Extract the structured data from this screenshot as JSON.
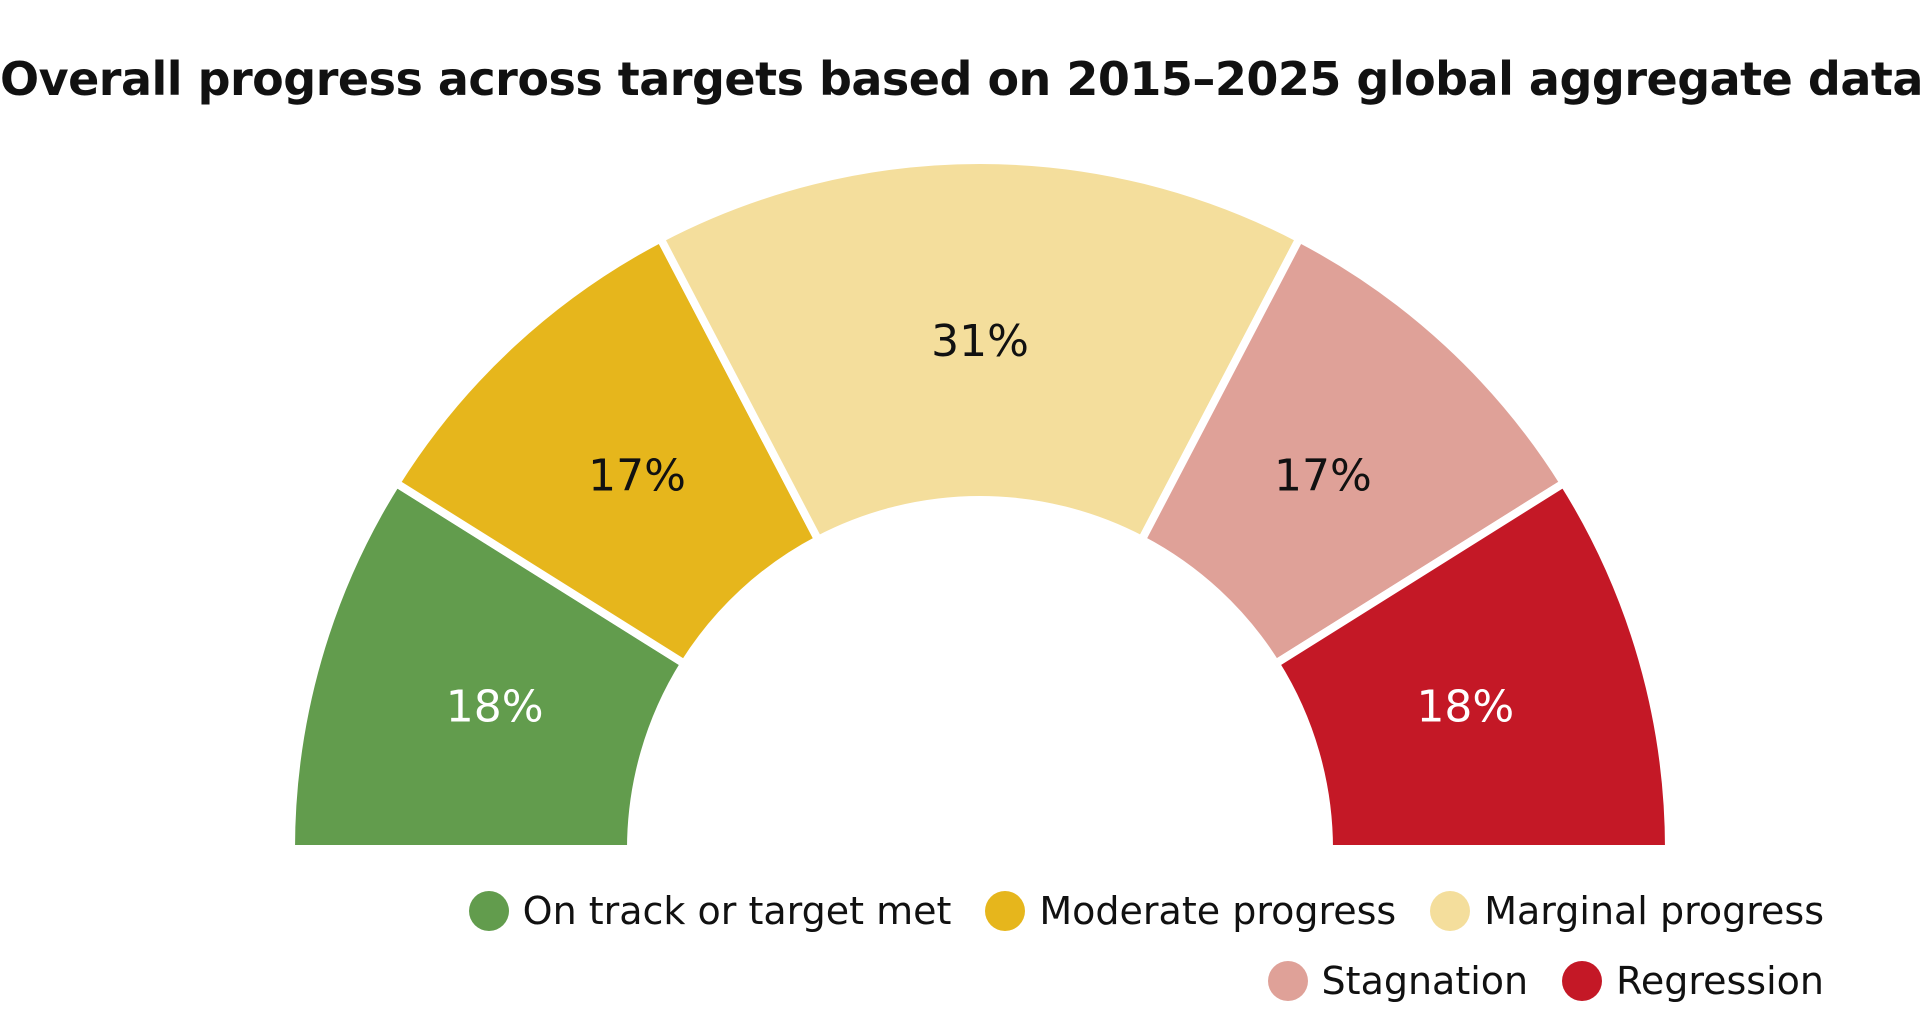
{
  "chart_data": {
    "type": "pie",
    "subtype": "semicircle-gauge",
    "title": "Overall progress across targets based on 2015–2025 global aggregate data",
    "categories": [
      "On track or target met",
      "Moderate progress",
      "Marginal progress",
      "Stagnation",
      "Regression"
    ],
    "values": [
      18,
      17,
      31,
      17,
      18
    ],
    "unit": "%",
    "data_labels": [
      "18%",
      "17%",
      "31%",
      "17%",
      "18%"
    ],
    "colors": [
      "#629c4d",
      "#e6b61c",
      "#f4de9c",
      "#dfa198",
      "#c41826"
    ],
    "label_colors": [
      "#ffffff",
      "#111111",
      "#111111",
      "#111111",
      "#ffffff"
    ],
    "legend_position": "bottom-right",
    "grid": false
  },
  "legend": {
    "rows": [
      [
        {
          "label": "On track or target met",
          "color": "#629c4d"
        },
        {
          "label": "Moderate progress",
          "color": "#e6b61c"
        },
        {
          "label": "Marginal progress",
          "color": "#f4de9c"
        }
      ],
      [
        {
          "label": "Stagnation",
          "color": "#dfa198"
        },
        {
          "label": "Regression",
          "color": "#c41826"
        }
      ]
    ]
  }
}
